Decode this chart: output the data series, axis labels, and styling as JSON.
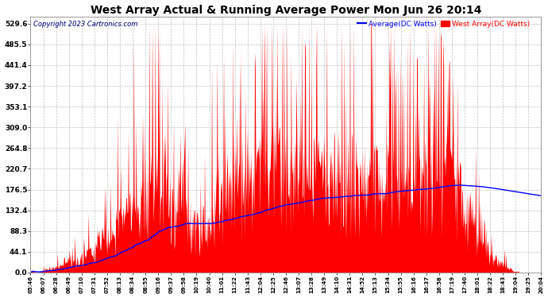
{
  "title": "West Array Actual & Running Average Power Mon Jun 26 20:14",
  "copyright": "Copyright 2023 Cartronics.com",
  "legend_avg": "Average(DC Watts)",
  "legend_west": "West Array(DC Watts)",
  "yticks": [
    0.0,
    44.1,
    88.3,
    132.4,
    176.5,
    220.7,
    264.8,
    309.0,
    353.1,
    397.2,
    441.4,
    485.5,
    529.6
  ],
  "ymax": 545,
  "bg_color": "#ffffff",
  "grid_color": "#bbbbbb",
  "bar_color": "#ff0000",
  "avg_color": "#0000ff",
  "title_color": "#000000",
  "copyright_color": "#000080",
  "avg_legend_color": "#0000ff",
  "west_legend_color": "#ff0000",
  "xtick_labels": [
    "05:46",
    "06:07",
    "06:28",
    "06:49",
    "07:10",
    "07:31",
    "07:52",
    "08:13",
    "08:34",
    "08:55",
    "09:16",
    "09:37",
    "09:58",
    "10:19",
    "10:40",
    "11:01",
    "11:22",
    "11:43",
    "12:04",
    "12:25",
    "12:46",
    "13:07",
    "13:28",
    "13:49",
    "14:10",
    "14:31",
    "14:52",
    "15:13",
    "15:34",
    "15:55",
    "16:16",
    "16:37",
    "16:58",
    "17:19",
    "17:40",
    "18:01",
    "18:22",
    "18:43",
    "19:04",
    "19:25",
    "20:04"
  ]
}
